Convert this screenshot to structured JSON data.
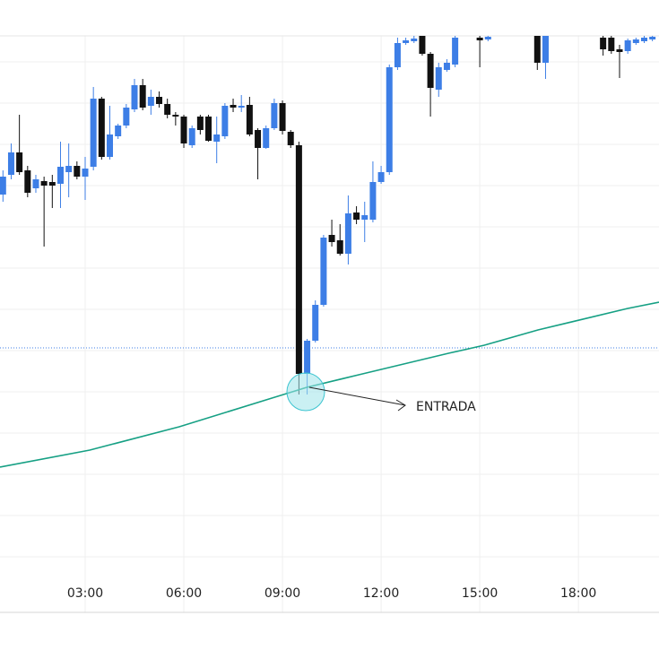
{
  "chart_data": {
    "type": "candlestick",
    "x": [
      0.5,
      0.75,
      1.0,
      1.25,
      1.5,
      1.75,
      2.0,
      2.25,
      2.5,
      2.75,
      3.0,
      3.25,
      3.5,
      3.75,
      4.0,
      4.25,
      4.5,
      4.75,
      5.0,
      5.25,
      5.5,
      5.75,
      6.0,
      6.25,
      6.5,
      6.75,
      7.0,
      7.25,
      7.5,
      7.75,
      8.0,
      8.25,
      8.5,
      8.75,
      9.0,
      9.25,
      9.5,
      9.75,
      10.0,
      10.25,
      10.5,
      10.75,
      11.0,
      11.25,
      11.5,
      11.75,
      12.0,
      12.25,
      12.5,
      12.75,
      13.0,
      13.25,
      13.5,
      13.75,
      14.0,
      14.25,
      15.0,
      15.25,
      16.75,
      17.0,
      18.75,
      19.0,
      19.25,
      19.5,
      19.75,
      20.0,
      20.25
    ],
    "open": [
      450,
      472,
      497,
      477,
      457,
      465,
      464,
      462,
      475,
      482,
      470,
      481,
      557,
      492,
      515,
      527,
      545,
      572,
      549,
      559,
      551,
      539,
      537,
      505,
      537,
      537,
      509,
      515,
      550,
      547,
      550,
      522,
      502,
      524,
      552,
      520,
      505,
      250,
      287,
      327,
      405,
      399,
      384,
      430,
      422,
      422,
      464,
      475,
      592,
      619,
      621,
      627,
      607,
      567,
      589,
      595,
      625,
      623,
      627,
      597,
      625,
      625,
      612,
      610,
      619,
      621,
      623
    ],
    "high": [
      477,
      507,
      539,
      482,
      472,
      470,
      472,
      509,
      507,
      487,
      492,
      570,
      559,
      549,
      529,
      551,
      579,
      579,
      567,
      565,
      557,
      542,
      539,
      527,
      539,
      539,
      537,
      552,
      557,
      561,
      559,
      524,
      527,
      557,
      555,
      522,
      509,
      289,
      332,
      405,
      422,
      417,
      449,
      437,
      442,
      487,
      482,
      595,
      625,
      625,
      627,
      629,
      609,
      597,
      601,
      629,
      629,
      629,
      629,
      629,
      627,
      627,
      617,
      624,
      625,
      627,
      629
    ],
    "low": [
      442,
      467,
      472,
      447,
      452,
      392,
      435,
      435,
      447,
      467,
      444,
      477,
      489,
      489,
      512,
      524,
      542,
      544,
      539,
      547,
      535,
      527,
      502,
      502,
      517,
      509,
      485,
      512,
      542,
      542,
      515,
      467,
      501,
      522,
      517,
      502,
      227,
      227,
      285,
      325,
      392,
      382,
      372,
      417,
      397,
      419,
      462,
      472,
      589,
      617,
      619,
      605,
      537,
      559,
      587,
      592,
      592,
      621,
      589,
      579,
      605,
      607,
      580,
      607,
      617,
      619,
      621
    ],
    "close": [
      470,
      497,
      475,
      452,
      467,
      460,
      460,
      481,
      482,
      470,
      479,
      557,
      492,
      517,
      527,
      547,
      572,
      547,
      559,
      551,
      539,
      537,
      507,
      524,
      522,
      510,
      517,
      549,
      547,
      549,
      517,
      502,
      524,
      552,
      521,
      505,
      250,
      287,
      327,
      402,
      397,
      384,
      429,
      422,
      427,
      464,
      475,
      592,
      619,
      622,
      624,
      607,
      569,
      592,
      597,
      625,
      622,
      626,
      597,
      627,
      612,
      610,
      609,
      622,
      623,
      625,
      626
    ],
    "up_color": "#3d7ee6",
    "down_color": "#111111",
    "xlim": [
      0.41,
      20.45
    ],
    "xticks": [
      {
        "value": 3,
        "label": "03:00"
      },
      {
        "value": 6,
        "label": "06:00"
      },
      {
        "value": 9,
        "label": "09:00"
      },
      {
        "value": 12,
        "label": "12:00"
      },
      {
        "value": 15,
        "label": "15:00"
      },
      {
        "value": 18,
        "label": "18:00"
      }
    ],
    "ylim": [
      -16,
      627
    ],
    "yticks": [
      46,
      92,
      138,
      184,
      230,
      276,
      322,
      368,
      414,
      460,
      506,
      552,
      598
    ],
    "grid": true,
    "lines": [
      {
        "color": "#16a084",
        "x": [
          0.41,
          3.14,
          5.86,
          8.59,
          9.74,
          11.32,
          14.05,
          15.14,
          16.77,
          19.5,
          20.45
        ],
        "values": [
          146,
          165,
          191,
          222,
          235,
          249,
          273,
          282,
          299,
          323,
          330
        ]
      }
    ],
    "hline": {
      "value": 279,
      "color": "#3d7ee6"
    },
    "annotations": [
      {
        "text": "ENTRADA"
      }
    ]
  }
}
